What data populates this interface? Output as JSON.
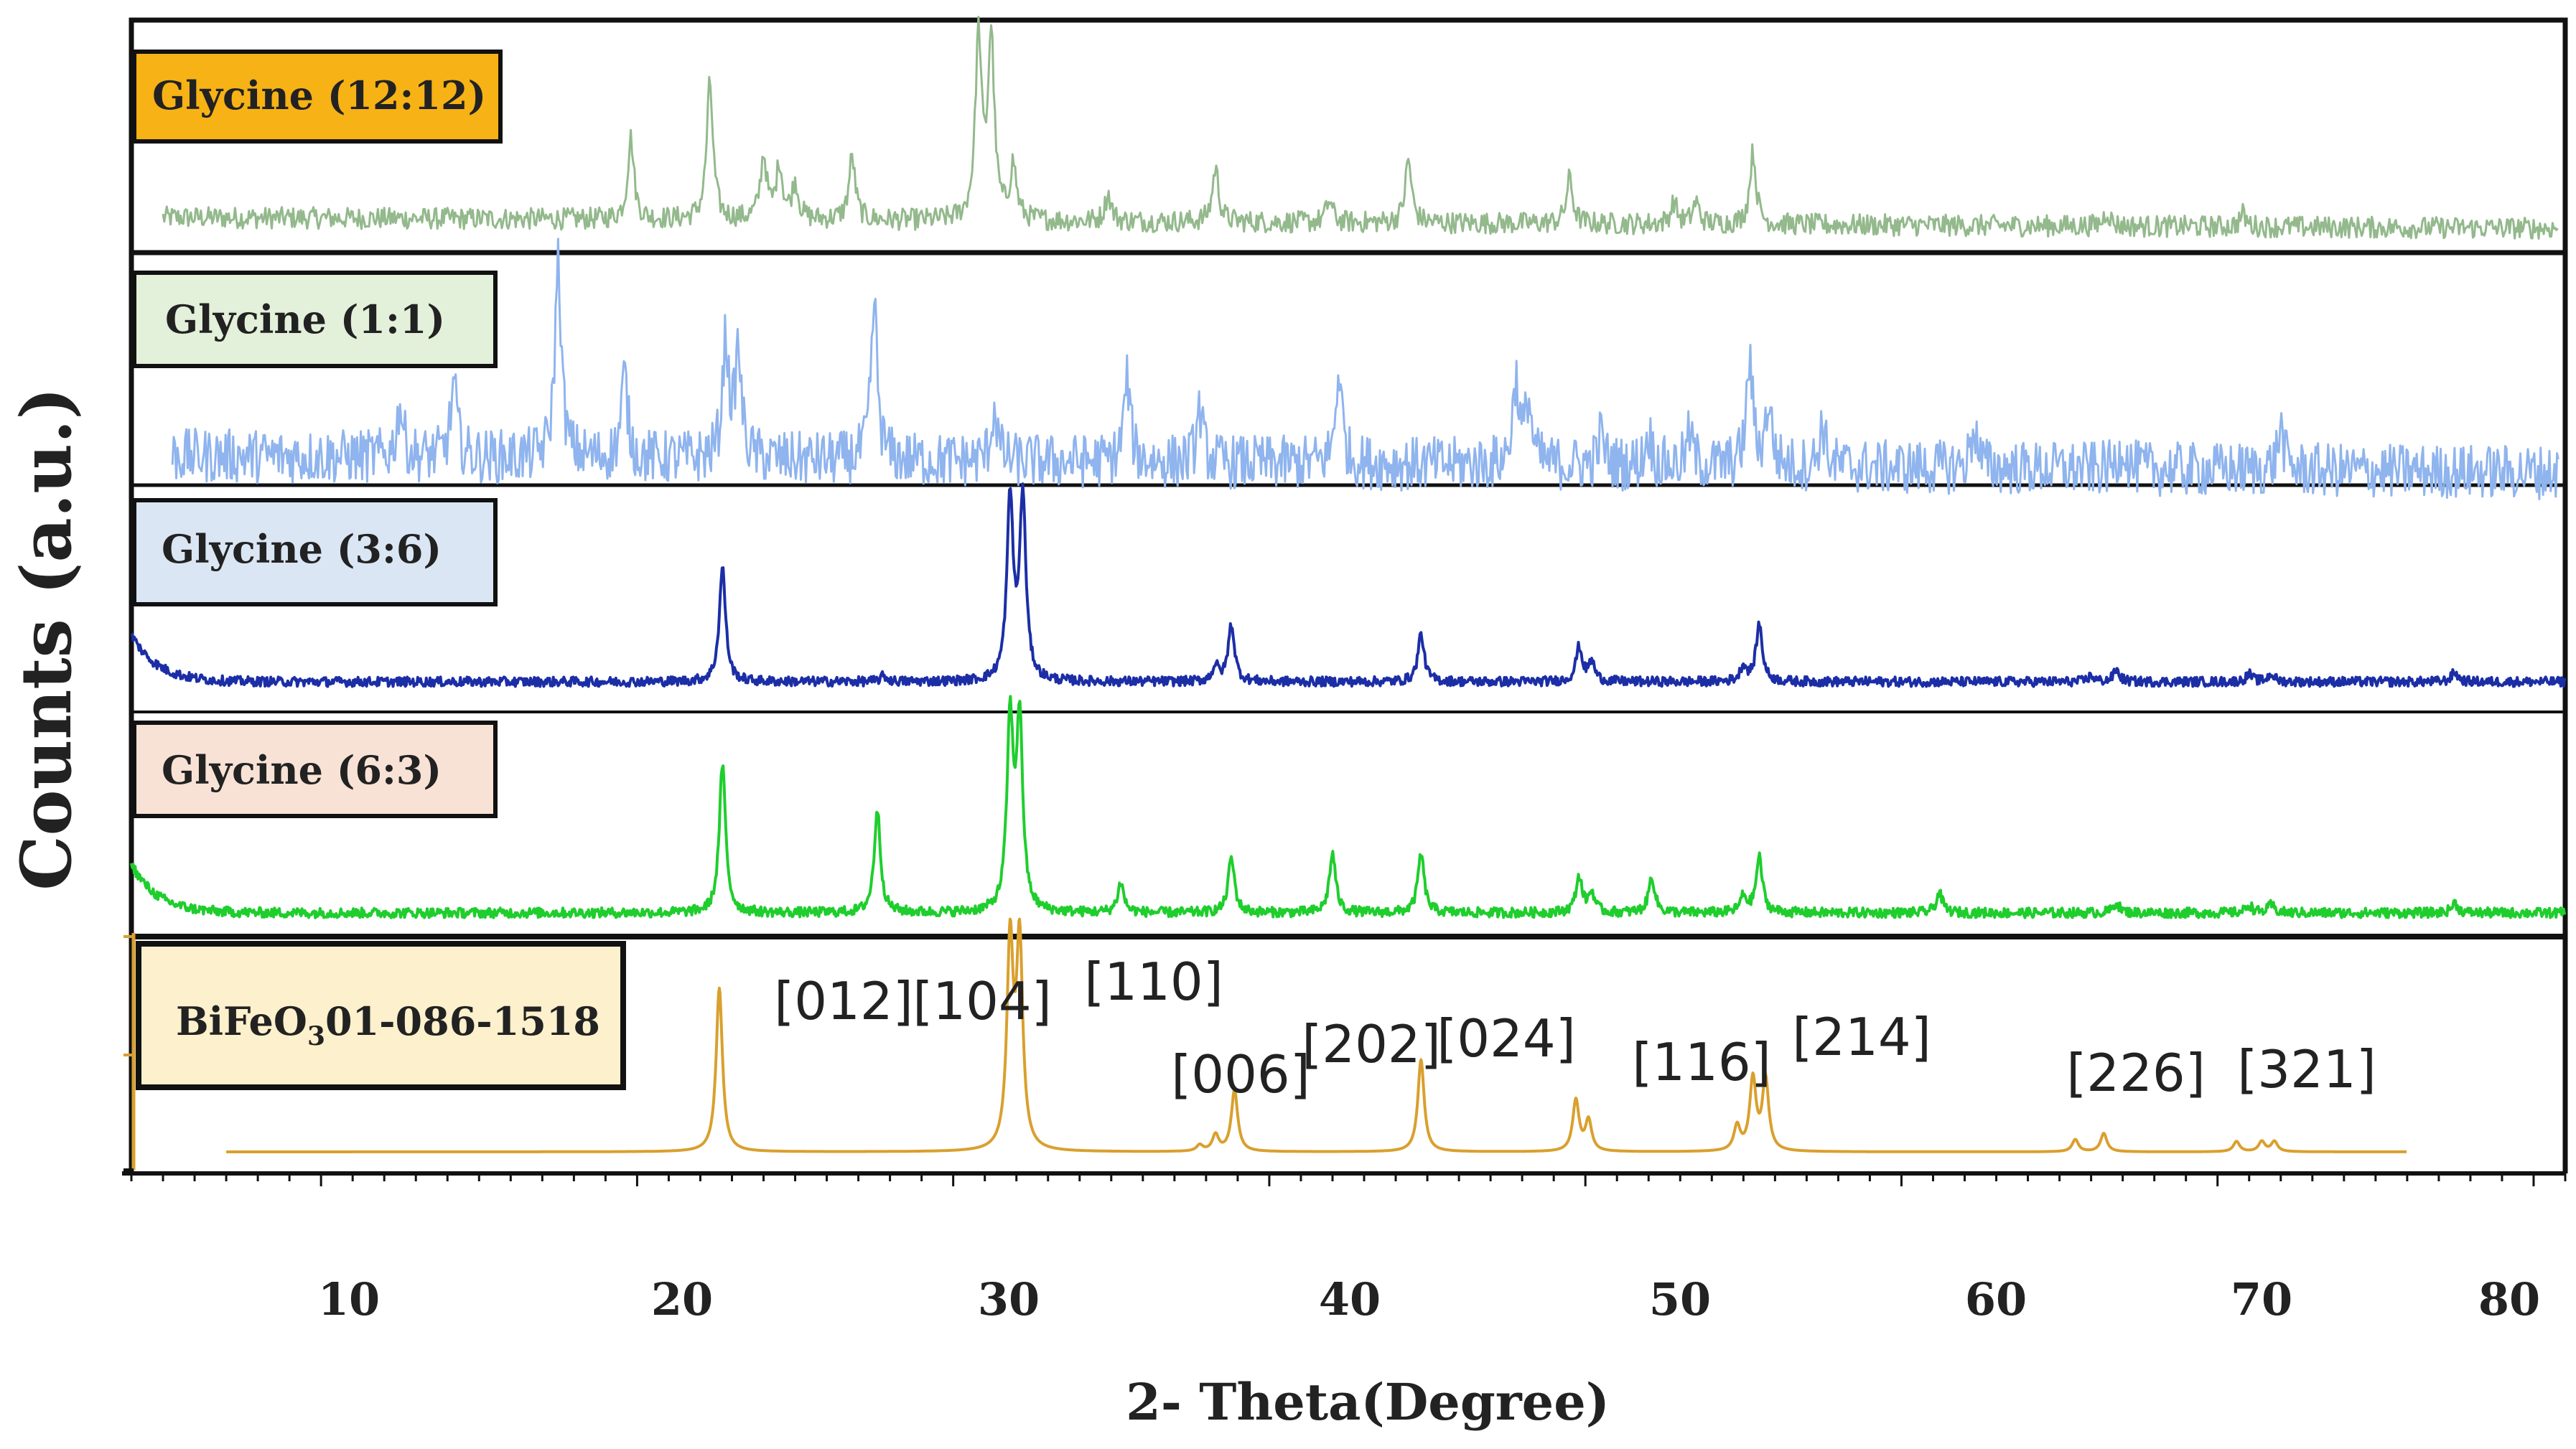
{
  "chart_data": {
    "type": "line",
    "title": "",
    "xlabel": "2- Theta(Degree)",
    "ylabel": "Counts (a.u.)",
    "xlim": [
      4,
      81
    ],
    "xticks": [
      10,
      20,
      30,
      40,
      50,
      60,
      70,
      80
    ],
    "tick_labels": [
      "10",
      "20",
      "30",
      "40",
      "50",
      "60",
      "70",
      "80"
    ],
    "series": [
      {
        "name": "Glycine (12:12)",
        "color": "#93b98c",
        "legend_fill": "#f7b216",
        "x_start": 5.0,
        "x_end": 80.8,
        "noise": 0.06,
        "baseline_slope": 0.06,
        "peaks": [
          [
            19.8,
            0.45
          ],
          [
            22.3,
            0.75
          ],
          [
            24.0,
            0.35
          ],
          [
            24.5,
            0.3
          ],
          [
            25.0,
            0.2
          ],
          [
            26.8,
            0.35
          ],
          [
            30.8,
            1.0
          ],
          [
            31.2,
            1.0
          ],
          [
            31.9,
            0.3
          ],
          [
            34.9,
            0.15
          ],
          [
            38.3,
            0.3
          ],
          [
            41.9,
            0.12
          ],
          [
            44.4,
            0.35
          ],
          [
            49.5,
            0.25
          ],
          [
            52.8,
            0.12
          ],
          [
            53.5,
            0.12
          ],
          [
            55.3,
            0.4
          ],
          [
            66.5,
            0.08
          ],
          [
            70.8,
            0.07
          ]
        ]
      },
      {
        "name": "Glycine (1:1)",
        "color": "#8fb4ee",
        "legend_fill": "#e3f0da",
        "x_start": 5.3,
        "x_end": 80.8,
        "noise": 0.13,
        "baseline_slope": 0.08,
        "peaks": [
          [
            12.5,
            0.25
          ],
          [
            14.2,
            0.35
          ],
          [
            17.5,
            0.95
          ],
          [
            19.6,
            0.4
          ],
          [
            22.8,
            0.55
          ],
          [
            23.2,
            0.5
          ],
          [
            27.5,
            0.75
          ],
          [
            31.3,
            0.25
          ],
          [
            35.5,
            0.4
          ],
          [
            37.8,
            0.25
          ],
          [
            42.2,
            0.45
          ],
          [
            47.8,
            0.4
          ],
          [
            48.2,
            0.3
          ],
          [
            50.5,
            0.15
          ],
          [
            52.0,
            0.15
          ],
          [
            53.3,
            0.15
          ],
          [
            55.2,
            0.5
          ],
          [
            55.8,
            0.3
          ],
          [
            57.5,
            0.2
          ],
          [
            62.3,
            0.2
          ],
          [
            67.0,
            0.12
          ],
          [
            72.0,
            0.2
          ]
        ]
      },
      {
        "name": "Glycine (3:6)",
        "color": "#1c2ea6",
        "legend_fill": "#dae6f3",
        "x_start": 4.0,
        "x_end": 81.0,
        "noise": 0.025,
        "baseline_slope": 0.0,
        "peaks": [
          [
            22.7,
            0.6
          ],
          [
            27.8,
            0.03
          ],
          [
            31.8,
            0.95
          ],
          [
            32.2,
            0.95
          ],
          [
            38.3,
            0.08
          ],
          [
            38.8,
            0.3
          ],
          [
            44.8,
            0.25
          ],
          [
            49.8,
            0.18
          ],
          [
            50.2,
            0.1
          ],
          [
            55.0,
            0.08
          ],
          [
            55.5,
            0.3
          ],
          [
            66.0,
            0.03
          ],
          [
            66.8,
            0.06
          ],
          [
            71.0,
            0.04
          ],
          [
            71.7,
            0.04
          ],
          [
            77.5,
            0.05
          ]
        ]
      },
      {
        "name": "Glycine (6:3)",
        "color": "#1fce2d",
        "legend_fill": "#f8e2d6",
        "x_start": 4.0,
        "x_end": 81.0,
        "noise": 0.025,
        "baseline_slope": 0.0,
        "peaks": [
          [
            22.7,
            0.75
          ],
          [
            27.6,
            0.52
          ],
          [
            31.8,
            0.95
          ],
          [
            32.1,
            0.95
          ],
          [
            35.3,
            0.15
          ],
          [
            38.8,
            0.28
          ],
          [
            42.0,
            0.3
          ],
          [
            44.8,
            0.3
          ],
          [
            49.8,
            0.18
          ],
          [
            50.2,
            0.1
          ],
          [
            52.1,
            0.18
          ],
          [
            55.0,
            0.08
          ],
          [
            55.5,
            0.28
          ],
          [
            61.2,
            0.1
          ],
          [
            66.8,
            0.05
          ],
          [
            71.0,
            0.04
          ],
          [
            71.7,
            0.04
          ],
          [
            77.5,
            0.05
          ]
        ]
      },
      {
        "name": "BiFeO301-086-1518",
        "label_main": "BiFeO",
        "label_sub": "3",
        "label_tail": "01-086-1518",
        "color": "#d9a02e",
        "legend_fill": "#fdf0cc",
        "x_start": 7.0,
        "x_end": 76.0,
        "noise": 0.0,
        "baseline_slope": 0.0,
        "peaks": [
          [
            22.6,
            0.8
          ],
          [
            31.8,
            1.0
          ],
          [
            32.1,
            1.0
          ],
          [
            37.8,
            0.03
          ],
          [
            38.3,
            0.08
          ],
          [
            38.9,
            0.3
          ],
          [
            44.8,
            0.45
          ],
          [
            49.7,
            0.25
          ],
          [
            50.1,
            0.15
          ],
          [
            54.8,
            0.12
          ],
          [
            55.3,
            0.35
          ],
          [
            55.7,
            0.35
          ],
          [
            65.5,
            0.06
          ],
          [
            66.4,
            0.09
          ],
          [
            70.6,
            0.05
          ],
          [
            71.4,
            0.05
          ],
          [
            71.8,
            0.05
          ]
        ]
      }
    ],
    "reflections": [
      {
        "label": "[012]",
        "x": 22.6
      },
      {
        "label": "[104]",
        "x": 31.8
      },
      {
        "label": "[110]",
        "x": 32.1
      },
      {
        "label": "[006]",
        "x": 38.3
      },
      {
        "label": "[202]",
        "x": 38.9
      },
      {
        "label": "[024]",
        "x": 44.8
      },
      {
        "label": "[116]",
        "x": 49.7
      },
      {
        "label": "[214]",
        "x": 55.5
      },
      {
        "label": "[226]",
        "x": 66.4
      },
      {
        "label": "[321]",
        "x": 71.4
      }
    ]
  }
}
